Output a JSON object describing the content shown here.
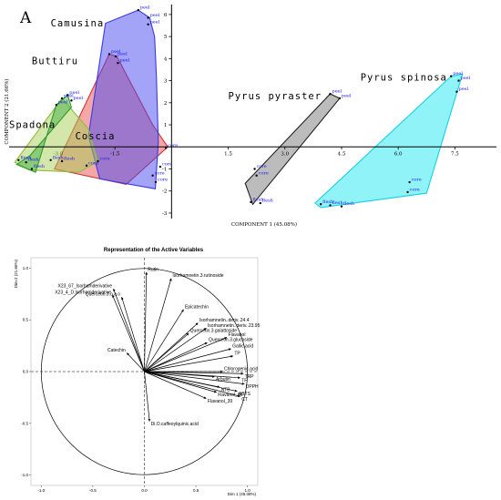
{
  "chart_data": [
    {
      "panel": "A",
      "type": "scatter",
      "xlabel": "COMPONENT 1 (45.08%)",
      "ylabel": "COMPONENT 2 (21.66%)",
      "xlim": [
        -4.3,
        8.6
      ],
      "ylim": [
        -3.25,
        6.45
      ],
      "xticks": [
        -1.5,
        1.5,
        3.0,
        4.5,
        6.0,
        7.5
      ],
      "xtick_labels": [
        "-1.5",
        "1.5",
        "3.0",
        "4.5",
        "6.0",
        "7.5"
      ],
      "xticks_faint": [
        -3.0
      ],
      "xtick_labels_faint": [
        "-3.0"
      ],
      "yticks": [
        -3,
        -2,
        -1,
        1,
        2,
        3,
        4,
        5,
        6
      ],
      "ytick_labels": [
        "-3",
        "-2",
        "-1",
        "1",
        "2",
        "3",
        "4",
        "5",
        "6"
      ],
      "groups": [
        {
          "name": "Camusina",
          "color": "#3a3ae6",
          "fill": "#4848f0",
          "hull": [
            [
              -1.75,
              5.6
            ],
            [
              -0.88,
              6.2
            ],
            [
              -0.58,
              5.85
            ],
            [
              -0.45,
              5.0
            ],
            [
              -0.4,
              3.2
            ],
            [
              -0.35,
              0.2
            ],
            [
              -0.43,
              -1.9
            ],
            [
              -1.9,
              -1.45
            ],
            [
              -2.2,
              0.5
            ]
          ],
          "points": [
            {
              "x": -0.88,
              "y": 6.2,
              "label": "peel"
            },
            {
              "x": -0.62,
              "y": 5.85,
              "label": "peel"
            },
            {
              "x": -0.62,
              "y": 5.55,
              "label": "peel"
            },
            {
              "x": -0.5,
              "y": -1.3,
              "label": "core"
            },
            {
              "x": -0.42,
              "y": -1.6,
              "label": "core"
            }
          ]
        },
        {
          "name": "Buttiru",
          "color": "#d23232",
          "fill": "#e85050",
          "hull": [
            [
              -1.65,
              4.2
            ],
            [
              -1.45,
              4.1
            ],
            [
              -0.5,
              1.0
            ],
            [
              -0.1,
              0.0
            ],
            [
              -1.2,
              -1.7
            ],
            [
              -3.1,
              -1.0
            ]
          ],
          "points": [
            {
              "x": -1.65,
              "y": 4.2,
              "label": "peel"
            },
            {
              "x": -1.48,
              "y": 4.1,
              "label": "peel"
            },
            {
              "x": -1.42,
              "y": 3.8,
              "label": "peel"
            },
            {
              "x": -0.15,
              "y": -0.05,
              "label": "core"
            },
            {
              "x": -0.3,
              "y": -0.9,
              "label": "core"
            }
          ]
        },
        {
          "name": "Spadona",
          "color": "#2e9a2e",
          "fill": "#44b044",
          "hull": [
            [
              -3.05,
              1.9
            ],
            [
              -2.75,
              2.35
            ],
            [
              -2.65,
              1.8
            ],
            [
              -3.75,
              -0.4
            ],
            [
              -4.1,
              -0.8
            ],
            [
              -3.6,
              -1.15
            ]
          ],
          "points": [
            {
              "x": -3.05,
              "y": 1.9,
              "label": "peel"
            },
            {
              "x": -2.75,
              "y": 2.35,
              "label": "peel"
            },
            {
              "x": -4.05,
              "y": -0.6,
              "label": "flesh"
            },
            {
              "x": -3.85,
              "y": -0.7,
              "label": "flesh"
            },
            {
              "x": -3.7,
              "y": -1.0,
              "label": "flesh"
            }
          ]
        },
        {
          "name": "Coscia",
          "color": "#8fbc3a",
          "fill": "#a8cf55",
          "hull": [
            [
              -2.9,
              2.2
            ],
            [
              -2.2,
              0.8
            ],
            [
              -1.95,
              -0.65
            ],
            [
              -2.45,
              -1.15
            ],
            [
              -3.75,
              -1.05
            ],
            [
              -4.15,
              -0.7
            ]
          ],
          "points": [
            {
              "x": -2.9,
              "y": 2.2,
              "label": "peel"
            },
            {
              "x": -2.65,
              "y": 2.1,
              "label": "peel"
            },
            {
              "x": -3.2,
              "y": -0.6,
              "label": "flesh"
            },
            {
              "x": -2.9,
              "y": -0.65,
              "label": "flesh"
            },
            {
              "x": -2.25,
              "y": -0.85,
              "label": "core"
            },
            {
              "x": -1.95,
              "y": -0.65,
              "label": "core"
            }
          ]
        },
        {
          "name": "Pyrus pyraster",
          "color": "#222222",
          "fill": "#7a7a7a",
          "hull": [
            [
              4.2,
              2.4
            ],
            [
              4.45,
              2.2
            ],
            [
              2.15,
              -2.6
            ],
            [
              1.95,
              -1.65
            ]
          ],
          "points": [
            {
              "x": 4.2,
              "y": 2.4,
              "label": "peel"
            },
            {
              "x": 4.45,
              "y": 2.2,
              "label": "peel"
            },
            {
              "x": 2.2,
              "y": -1.0,
              "label": "core"
            },
            {
              "x": 2.25,
              "y": -1.3,
              "label": "core"
            },
            {
              "x": 2.1,
              "y": -2.5,
              "label": "flesh"
            },
            {
              "x": 2.35,
              "y": -2.55,
              "label": "flesh"
            }
          ]
        },
        {
          "name": "Pyrus spinosa",
          "color": "#19cfe6",
          "fill": "#22e8f0",
          "hull": [
            [
              7.4,
              3.2
            ],
            [
              7.7,
              3.3
            ],
            [
              6.75,
              -2.1
            ],
            [
              3.95,
              -2.75
            ],
            [
              3.8,
              -2.55
            ]
          ],
          "points": [
            {
              "x": 7.4,
              "y": 3.2,
              "label": "peel"
            },
            {
              "x": 7.6,
              "y": 3.0,
              "label": "peel"
            },
            {
              "x": 7.55,
              "y": 2.5,
              "label": "peel"
            },
            {
              "x": 6.3,
              "y": -1.6,
              "label": "core"
            },
            {
              "x": 6.25,
              "y": -2.05,
              "label": "core"
            },
            {
              "x": 3.95,
              "y": -2.6,
              "label": "flesh"
            },
            {
              "x": 4.2,
              "y": -2.65,
              "label": "flesh"
            },
            {
              "x": 4.5,
              "y": -2.7,
              "label": "flesh"
            }
          ]
        }
      ]
    },
    {
      "panel": "B",
      "type": "scatter",
      "title": "Representation of the Active Variables",
      "xlabel": "Dim 1 (45.08%)",
      "ylabel": "Dim 2 (21.66%)",
      "xlim": [
        -1.1,
        1.1
      ],
      "ylim": [
        -1.1,
        1.1
      ],
      "xticks": [
        -1.0,
        -0.5,
        0.0,
        0.5,
        1.0
      ],
      "xtick_labels": [
        "-1.0",
        "-0.5",
        "0.0",
        "0.5",
        "1.0"
      ],
      "yticks": [
        -1.0,
        -0.5,
        0.0,
        0.5,
        1.0
      ],
      "ytick_labels": [
        "-1.0",
        "-0.5",
        "0.0",
        "0.5",
        "1.0"
      ],
      "variables": [
        {
          "name": "Rutin",
          "x": 0.02,
          "y": 0.96
        },
        {
          "name": "X23_67_Isorhamderivative",
          "x": -0.3,
          "y": 0.8
        },
        {
          "name": "X23_4_D.Isorhamderivative",
          "x": -0.31,
          "y": 0.74
        },
        {
          "name": "Quercetin.3.o.a.o",
          "x": -0.22,
          "y": 0.72
        },
        {
          "name": "Catechin",
          "x": -0.17,
          "y": 0.18
        },
        {
          "name": "Isorhamnetin.3.rutinoside",
          "x": 0.26,
          "y": 0.9
        },
        {
          "name": "Epicatechin",
          "x": 0.38,
          "y": 0.6
        },
        {
          "name": "Isorhamnetin..deriv..24.4",
          "x": 0.52,
          "y": 0.47
        },
        {
          "name": "Isorhamnetin..deriv..23.95",
          "x": 0.6,
          "y": 0.42
        },
        {
          "name": "Quercetin.3.galattoside",
          "x": 0.43,
          "y": 0.37
        },
        {
          "name": "Flavanol",
          "x": 0.8,
          "y": 0.33
        },
        {
          "name": "Quercetin.3.glucoside",
          "x": 0.61,
          "y": 0.28
        },
        {
          "name": "Gallic.acid",
          "x": 0.84,
          "y": 0.22
        },
        {
          "name": "TP",
          "x": 0.86,
          "y": 0.15
        },
        {
          "name": "Chlorogenic.acid",
          "x": 0.76,
          "y": 0.0
        },
        {
          "name": "TRP",
          "x": 0.96,
          "y": -0.02
        },
        {
          "name": "Arbutin",
          "x": 0.68,
          "y": -0.05
        },
        {
          "name": "TF",
          "x": 0.93,
          "y": -0.06
        },
        {
          "name": "DPPH",
          "x": 0.97,
          "y": -0.12
        },
        {
          "name": "NTB",
          "x": 0.73,
          "y": -0.15
        },
        {
          "name": "ABTS",
          "x": 0.9,
          "y": -0.19
        },
        {
          "name": "Flavanol_86",
          "x": 0.7,
          "y": -0.2
        },
        {
          "name": "CT",
          "x": 0.93,
          "y": -0.24
        },
        {
          "name": "Flavanol_39",
          "x": 0.6,
          "y": -0.26
        },
        {
          "name": "Di.O.caffeoylquinic.acid",
          "x": 0.05,
          "y": -0.48
        }
      ]
    }
  ]
}
